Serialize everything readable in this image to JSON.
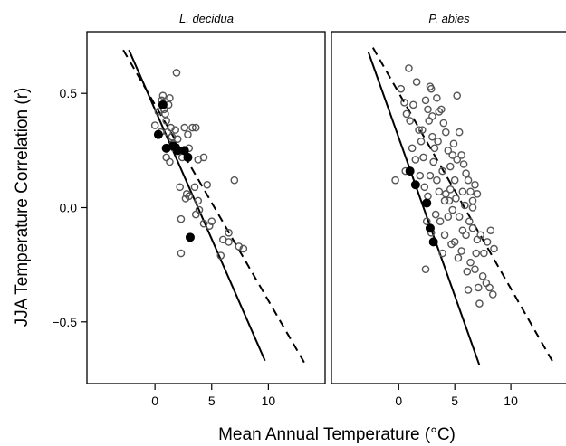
{
  "chart_data": {
    "type": "scatter",
    "ylabel": "JJA Temperature Correlation (r)",
    "xlabel": "Mean Annual Temperature (°C)",
    "xlim": [
      -6,
      15
    ],
    "ylim": [
      -0.77,
      0.77
    ],
    "x_ticks": [
      0,
      5,
      10
    ],
    "y_ticks": [
      -0.5,
      0.0,
      0.5
    ],
    "x_tick_labels": [
      "0",
      "5",
      "10"
    ],
    "y_tick_labels": [
      "−0.5",
      "0.0",
      "0.5"
    ],
    "grid": false,
    "colors": {
      "open_marker": "#555555",
      "filled_marker": "#000000",
      "lines": "#000000"
    },
    "panels": [
      {
        "title": "L. decidua",
        "solid_line": {
          "x": [
            -2.3,
            9.7
          ],
          "y": [
            0.69,
            -0.67
          ]
        },
        "dashed_line": {
          "x": [
            -2.8,
            13.3
          ],
          "y": [
            0.69,
            -0.69
          ]
        },
        "open_points": [
          [
            0.0,
            0.36
          ],
          [
            0.3,
            0.42
          ],
          [
            0.6,
            0.47
          ],
          [
            0.7,
            0.49
          ],
          [
            0.8,
            0.43
          ],
          [
            0.9,
            0.41
          ],
          [
            1.0,
            0.38
          ],
          [
            1.1,
            0.33
          ],
          [
            0.5,
            0.33
          ],
          [
            1.2,
            0.45
          ],
          [
            1.3,
            0.48
          ],
          [
            1.4,
            0.35
          ],
          [
            1.5,
            0.31
          ],
          [
            1.6,
            0.28
          ],
          [
            1.7,
            0.26
          ],
          [
            1.8,
            0.34
          ],
          [
            1.9,
            0.59
          ],
          [
            1.0,
            0.22
          ],
          [
            1.3,
            0.2
          ],
          [
            2.0,
            0.3
          ],
          [
            2.2,
            0.25
          ],
          [
            2.4,
            0.22
          ],
          [
            2.6,
            0.35
          ],
          [
            2.9,
            0.32
          ],
          [
            3.0,
            0.26
          ],
          [
            3.3,
            0.35
          ],
          [
            3.6,
            0.35
          ],
          [
            2.2,
            0.09
          ],
          [
            2.7,
            0.04
          ],
          [
            2.8,
            0.06
          ],
          [
            3.0,
            0.05
          ],
          [
            3.5,
            0.09
          ],
          [
            3.8,
            0.21
          ],
          [
            4.3,
            0.22
          ],
          [
            4.6,
            0.1
          ],
          [
            3.8,
            0.03
          ],
          [
            3.9,
            -0.01
          ],
          [
            4.3,
            -0.07
          ],
          [
            4.8,
            -0.08
          ],
          [
            5.0,
            -0.06
          ],
          [
            2.3,
            -0.05
          ],
          [
            3.6,
            -0.03
          ],
          [
            2.3,
            -0.2
          ],
          [
            6.0,
            -0.14
          ],
          [
            6.5,
            -0.11
          ],
          [
            6.5,
            -0.15
          ],
          [
            7.0,
            0.12
          ],
          [
            7.4,
            -0.17
          ],
          [
            7.8,
            -0.18
          ],
          [
            5.8,
            -0.21
          ]
        ],
        "filled_points": [
          [
            0.3,
            0.32
          ],
          [
            0.7,
            0.45
          ],
          [
            1.0,
            0.26
          ],
          [
            1.6,
            0.27
          ],
          [
            2.0,
            0.25
          ],
          [
            2.6,
            0.25
          ],
          [
            2.9,
            0.22
          ],
          [
            3.1,
            -0.13
          ]
        ]
      },
      {
        "title": "P. abies",
        "solid_line": {
          "x": [
            -2.7,
            7.2
          ],
          "y": [
            0.68,
            -0.69
          ]
        },
        "dashed_line": {
          "x": [
            -2.3,
            13.8
          ],
          "y": [
            0.7,
            -0.68
          ]
        },
        "open_points": [
          [
            -0.3,
            0.12
          ],
          [
            0.2,
            0.52
          ],
          [
            0.5,
            0.46
          ],
          [
            0.7,
            0.41
          ],
          [
            0.9,
            0.61
          ],
          [
            1.0,
            0.38
          ],
          [
            1.3,
            0.45
          ],
          [
            1.6,
            0.55
          ],
          [
            1.8,
            0.34
          ],
          [
            2.0,
            0.29
          ],
          [
            2.2,
            0.22
          ],
          [
            2.4,
            0.47
          ],
          [
            2.6,
            0.43
          ],
          [
            2.7,
            0.38
          ],
          [
            2.8,
            0.53
          ],
          [
            2.9,
            0.52
          ],
          [
            3.0,
            0.31
          ],
          [
            3.2,
            0.26
          ],
          [
            3.4,
            0.48
          ],
          [
            3.6,
            0.42
          ],
          [
            3.8,
            0.43
          ],
          [
            4.0,
            0.37
          ],
          [
            4.2,
            0.33
          ],
          [
            4.4,
            0.25
          ],
          [
            4.6,
            0.18
          ],
          [
            4.8,
            0.23
          ],
          [
            5.0,
            0.12
          ],
          [
            5.2,
            0.49
          ],
          [
            5.4,
            0.33
          ],
          [
            5.6,
            0.23
          ],
          [
            5.8,
            0.19
          ],
          [
            6.0,
            0.15
          ],
          [
            6.2,
            0.12
          ],
          [
            6.4,
            0.07
          ],
          [
            6.6,
            0.03
          ],
          [
            6.8,
            0.1
          ],
          [
            7.0,
            0.06
          ],
          [
            1.5,
            0.21
          ],
          [
            1.9,
            0.14
          ],
          [
            2.3,
            0.09
          ],
          [
            2.6,
            0.05
          ],
          [
            2.8,
            0.14
          ],
          [
            3.1,
            0.2
          ],
          [
            3.4,
            0.12
          ],
          [
            3.6,
            0.07
          ],
          [
            3.9,
            0.16
          ],
          [
            4.2,
            0.06
          ],
          [
            4.5,
            0.03
          ],
          [
            4.8,
            -0.01
          ],
          [
            5.1,
            0.04
          ],
          [
            5.4,
            -0.04
          ],
          [
            5.7,
            -0.1
          ],
          [
            6.0,
            -0.12
          ],
          [
            6.3,
            -0.06
          ],
          [
            6.6,
            -0.09
          ],
          [
            7.0,
            -0.14
          ],
          [
            7.3,
            -0.12
          ],
          [
            7.6,
            -0.2
          ],
          [
            7.9,
            -0.15
          ],
          [
            8.2,
            -0.1
          ],
          [
            8.5,
            -0.18
          ],
          [
            2.5,
            -0.06
          ],
          [
            2.9,
            -0.11
          ],
          [
            3.3,
            -0.03
          ],
          [
            3.7,
            -0.06
          ],
          [
            4.1,
            -0.12
          ],
          [
            4.4,
            -0.04
          ],
          [
            4.7,
            -0.16
          ],
          [
            5.0,
            -0.15
          ],
          [
            5.3,
            -0.22
          ],
          [
            5.6,
            -0.19
          ],
          [
            6.1,
            -0.28
          ],
          [
            6.4,
            -0.24
          ],
          [
            6.8,
            -0.27
          ],
          [
            7.1,
            -0.35
          ],
          [
            7.5,
            -0.3
          ],
          [
            7.8,
            -0.33
          ],
          [
            8.1,
            -0.35
          ],
          [
            8.4,
            -0.38
          ],
          [
            2.4,
            -0.27
          ],
          [
            6.2,
            -0.36
          ],
          [
            7.2,
            -0.42
          ],
          [
            6.6,
            0.0
          ],
          [
            5.9,
            0.01
          ],
          [
            4.6,
            0.08
          ],
          [
            2.1,
            0.34
          ],
          [
            0.6,
            0.16
          ],
          [
            1.2,
            0.26
          ],
          [
            3.5,
            0.29
          ],
          [
            4.9,
            0.28
          ],
          [
            5.2,
            0.21
          ],
          [
            3.0,
            0.4
          ],
          [
            4.1,
            0.03
          ],
          [
            5.7,
            0.07
          ],
          [
            6.9,
            -0.2
          ],
          [
            3.9,
            -0.2
          ]
        ],
        "filled_points": [
          [
            1.0,
            0.16
          ],
          [
            1.5,
            0.1
          ],
          [
            2.5,
            0.02
          ],
          [
            2.8,
            -0.09
          ],
          [
            3.1,
            -0.15
          ]
        ]
      }
    ]
  }
}
